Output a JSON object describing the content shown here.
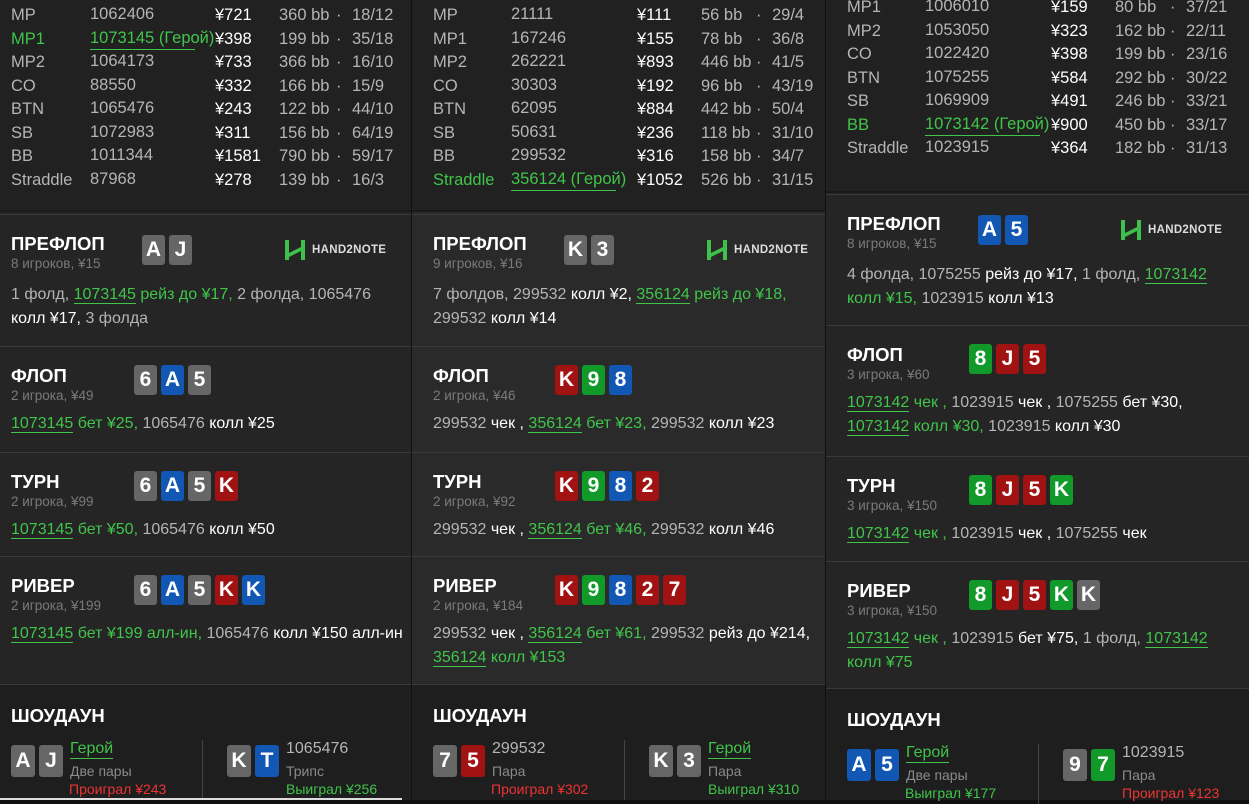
{
  "columns": [
    {
      "table": [
        {
          "pos": "MP",
          "id": "1062406",
          "amount": "¥721",
          "bb": "360 bb",
          "stats": "18/12",
          "hero": false
        },
        {
          "pos": "MP1",
          "id": "1073145 (Герой)",
          "amount": "¥398",
          "bb": "199 bb",
          "stats": "35/18",
          "hero": true
        },
        {
          "pos": "MP2",
          "id": "1064173",
          "amount": "¥733",
          "bb": "366 bb",
          "stats": "16/10",
          "hero": false
        },
        {
          "pos": "CO",
          "id": "88550",
          "amount": "¥332",
          "bb": "166 bb",
          "stats": "15/9",
          "hero": false
        },
        {
          "pos": "BTN",
          "id": "1065476",
          "amount": "¥243",
          "bb": "122 bb",
          "stats": "44/10",
          "hero": false
        },
        {
          "pos": "SB",
          "id": "1072983",
          "amount": "¥311",
          "bb": "156 bb",
          "stats": "64/19",
          "hero": false
        },
        {
          "pos": "BB",
          "id": "1011344",
          "amount": "¥1581",
          "bb": "790 bb",
          "stats": "59/17",
          "hero": false
        },
        {
          "pos": "Straddle",
          "id": "87968",
          "amount": "¥278",
          "bb": "139 bb",
          "stats": "16/3",
          "hero": false
        }
      ],
      "streets": [
        {
          "title": "ПРЕФЛОП",
          "sub": "8 игроков, ¥15",
          "cards": [
            {
              "r": "A",
              "s": "s"
            },
            {
              "r": "J",
              "s": "s"
            }
          ],
          "logo": true,
          "actions": [
            {
              "t": "1 фолд, ",
              "c": "gray"
            },
            {
              "t": "1073145",
              "c": "hu"
            },
            {
              "t": " рейз до ¥17, ",
              "c": "green"
            },
            {
              "t": "2 фолда, 1065476 ",
              "c": "gray"
            },
            {
              "t": "колл ¥17, ",
              "c": "white"
            },
            {
              "t": "3 фолда",
              "c": "gray"
            }
          ]
        },
        {
          "title": "ФЛОП",
          "sub": "2 игрока, ¥49",
          "cards": [
            {
              "r": "6",
              "s": "s"
            },
            {
              "r": "A",
              "s": "d"
            },
            {
              "r": "5",
              "s": "s"
            }
          ],
          "actions": [
            {
              "t": "1073145",
              "c": "hu"
            },
            {
              "t": " бет ¥25, ",
              "c": "green"
            },
            {
              "t": "1065476 ",
              "c": "gray"
            },
            {
              "t": "колл ¥25",
              "c": "white"
            }
          ]
        },
        {
          "title": "ТУРН",
          "sub": "2 игрока, ¥99",
          "cards": [
            {
              "r": "6",
              "s": "s"
            },
            {
              "r": "A",
              "s": "d"
            },
            {
              "r": "5",
              "s": "s"
            },
            {
              "r": "K",
              "s": "h"
            }
          ],
          "actions": [
            {
              "t": "1073145",
              "c": "hu"
            },
            {
              "t": " бет ¥50, ",
              "c": "green"
            },
            {
              "t": "1065476 ",
              "c": "gray"
            },
            {
              "t": "колл ¥50",
              "c": "white"
            }
          ]
        },
        {
          "title": "РИВЕР",
          "sub": "2 игрока, ¥199",
          "cards": [
            {
              "r": "6",
              "s": "s"
            },
            {
              "r": "A",
              "s": "d"
            },
            {
              "r": "5",
              "s": "s"
            },
            {
              "r": "K",
              "s": "h"
            },
            {
              "r": "K",
              "s": "d"
            }
          ],
          "actions": [
            {
              "t": "1073145",
              "c": "hu"
            },
            {
              "t": " бет ¥199 алл-ин, ",
              "c": "green"
            },
            {
              "t": "1065476 ",
              "c": "gray"
            },
            {
              "t": "колл ¥150 алл-ин",
              "c": "white"
            }
          ]
        }
      ],
      "showdown": {
        "title": "ШОУДАУН",
        "players": [
          {
            "cards": [
              {
                "r": "A",
                "s": "s"
              },
              {
                "r": "J",
                "s": "s"
              }
            ],
            "name": "Герой",
            "hero": true,
            "hand": "Две пары",
            "result": "Проиграл ¥243",
            "win": false
          },
          {
            "cards": [
              {
                "r": "K",
                "s": "s"
              },
              {
                "r": "T",
                "s": "d"
              }
            ],
            "name": "1065476",
            "hero": false,
            "hand": "Трипс",
            "result": "Выиграл ¥256",
            "win": true
          }
        ]
      }
    },
    {
      "table": [
        {
          "pos": "MP",
          "id": "21111",
          "amount": "¥111",
          "bb": "56 bb",
          "stats": "29/4",
          "hero": false
        },
        {
          "pos": "MP1",
          "id": "167246",
          "amount": "¥155",
          "bb": "78 bb",
          "stats": "36/8",
          "hero": false
        },
        {
          "pos": "MP2",
          "id": "262221",
          "amount": "¥893",
          "bb": "446 bb",
          "stats": "41/5",
          "hero": false
        },
        {
          "pos": "CO",
          "id": "30303",
          "amount": "¥192",
          "bb": "96 bb",
          "stats": "43/19",
          "hero": false
        },
        {
          "pos": "BTN",
          "id": "62095",
          "amount": "¥884",
          "bb": "442 bb",
          "stats": "50/4",
          "hero": false
        },
        {
          "pos": "SB",
          "id": "50631",
          "amount": "¥236",
          "bb": "118 bb",
          "stats": "31/10",
          "hero": false
        },
        {
          "pos": "BB",
          "id": "299532",
          "amount": "¥316",
          "bb": "158 bb",
          "stats": "34/7",
          "hero": false
        },
        {
          "pos": "Straddle",
          "id": "356124 (Герой)",
          "amount": "¥1052",
          "bb": "526 bb",
          "stats": "31/15",
          "hero": true
        }
      ],
      "streets": [
        {
          "title": "ПРЕФЛОП",
          "sub": "9 игроков, ¥16",
          "cards": [
            {
              "r": "K",
              "s": "s"
            },
            {
              "r": "3",
              "s": "s"
            }
          ],
          "logo": true,
          "actions": [
            {
              "t": "7 фолдов, 299532 ",
              "c": "gray"
            },
            {
              "t": "колл ¥2, ",
              "c": "white"
            },
            {
              "t": "356124",
              "c": "hu"
            },
            {
              "t": " рейз до ¥18, ",
              "c": "green"
            },
            {
              "t": "299532 ",
              "c": "gray"
            },
            {
              "t": "колл ¥14",
              "c": "white"
            }
          ]
        },
        {
          "title": "ФЛОП",
          "sub": "2 игрока, ¥46",
          "cards": [
            {
              "r": "K",
              "s": "h"
            },
            {
              "r": "9",
              "s": "c"
            },
            {
              "r": "8",
              "s": "d"
            }
          ],
          "actions": [
            {
              "t": "299532 ",
              "c": "gray"
            },
            {
              "t": "чек , ",
              "c": "white"
            },
            {
              "t": "356124",
              "c": "hu"
            },
            {
              "t": " бет ¥23, ",
              "c": "green"
            },
            {
              "t": "299532 ",
              "c": "gray"
            },
            {
              "t": "колл ¥23",
              "c": "white"
            }
          ]
        },
        {
          "title": "ТУРН",
          "sub": "2 игрока, ¥92",
          "cards": [
            {
              "r": "K",
              "s": "h"
            },
            {
              "r": "9",
              "s": "c"
            },
            {
              "r": "8",
              "s": "d"
            },
            {
              "r": "2",
              "s": "h"
            }
          ],
          "actions": [
            {
              "t": "299532 ",
              "c": "gray"
            },
            {
              "t": "чек , ",
              "c": "white"
            },
            {
              "t": "356124",
              "c": "hu"
            },
            {
              "t": " бет ¥46, ",
              "c": "green"
            },
            {
              "t": "299532 ",
              "c": "gray"
            },
            {
              "t": "колл ¥46",
              "c": "white"
            }
          ]
        },
        {
          "title": "РИВЕР",
          "sub": "2 игрока, ¥184",
          "cards": [
            {
              "r": "K",
              "s": "h"
            },
            {
              "r": "9",
              "s": "c"
            },
            {
              "r": "8",
              "s": "d"
            },
            {
              "r": "2",
              "s": "h"
            },
            {
              "r": "7",
              "s": "h"
            }
          ],
          "actions": [
            {
              "t": "299532 ",
              "c": "gray"
            },
            {
              "t": "чек , ",
              "c": "white"
            },
            {
              "t": "356124",
              "c": "hu"
            },
            {
              "t": " бет ¥61, ",
              "c": "green"
            },
            {
              "t": "299532 ",
              "c": "gray"
            },
            {
              "t": "рейз до ¥214, ",
              "c": "white"
            },
            {
              "t": "356124",
              "c": "hu"
            },
            {
              "t": " колл ¥153",
              "c": "green"
            }
          ]
        }
      ],
      "showdown": {
        "title": "ШОУДАУН",
        "players": [
          {
            "cards": [
              {
                "r": "7",
                "s": "s"
              },
              {
                "r": "5",
                "s": "h"
              }
            ],
            "name": "299532",
            "hero": false,
            "hand": "Пара",
            "result": "Проиграл ¥302",
            "win": false
          },
          {
            "cards": [
              {
                "r": "K",
                "s": "s"
              },
              {
                "r": "3",
                "s": "s"
              }
            ],
            "name": "Герой",
            "hero": true,
            "hand": "Пара",
            "result": "Выиграл ¥310",
            "win": true
          }
        ]
      }
    },
    {
      "table": [
        {
          "pos": "MP1",
          "id": "1006010",
          "amount": "¥159",
          "bb": "80 bb",
          "stats": "37/21",
          "hero": false
        },
        {
          "pos": "MP2",
          "id": "1053050",
          "amount": "¥323",
          "bb": "162 bb",
          "stats": "22/11",
          "hero": false
        },
        {
          "pos": "CO",
          "id": "1022420",
          "amount": "¥398",
          "bb": "199 bb",
          "stats": "23/16",
          "hero": false
        },
        {
          "pos": "BTN",
          "id": "1075255",
          "amount": "¥584",
          "bb": "292 bb",
          "stats": "30/22",
          "hero": false
        },
        {
          "pos": "SB",
          "id": "1069909",
          "amount": "¥491",
          "bb": "246 bb",
          "stats": "33/21",
          "hero": false
        },
        {
          "pos": "BB",
          "id": "1073142 (Герой)",
          "amount": "¥900",
          "bb": "450 bb",
          "stats": "33/17",
          "hero": true
        },
        {
          "pos": "Straddle",
          "id": "1023915",
          "amount": "¥364",
          "bb": "182 bb",
          "stats": "31/13",
          "hero": false
        }
      ],
      "streets": [
        {
          "title": "ПРЕФЛОП",
          "sub": "8 игроков, ¥15",
          "cards": [
            {
              "r": "A",
              "s": "d"
            },
            {
              "r": "5",
              "s": "d"
            }
          ],
          "logo": true,
          "actions": [
            {
              "t": "4 фолда, 1075255 ",
              "c": "gray"
            },
            {
              "t": "рейз до ¥17, ",
              "c": "white"
            },
            {
              "t": "1 фолд, ",
              "c": "gray"
            },
            {
              "t": "1073142",
              "c": "hu"
            },
            {
              "t": " колл ¥15, ",
              "c": "green"
            },
            {
              "t": "1023915 ",
              "c": "gray"
            },
            {
              "t": "колл ¥13",
              "c": "white"
            }
          ]
        },
        {
          "title": "ФЛОП",
          "sub": "3 игрока, ¥60",
          "cards": [
            {
              "r": "8",
              "s": "c"
            },
            {
              "r": "J",
              "s": "h"
            },
            {
              "r": "5",
              "s": "h"
            }
          ],
          "actions": [
            {
              "t": "1073142",
              "c": "hu"
            },
            {
              "t": " чек , ",
              "c": "green"
            },
            {
              "t": "1023915 ",
              "c": "gray"
            },
            {
              "t": "чек , ",
              "c": "white"
            },
            {
              "t": "1075255 ",
              "c": "gray"
            },
            {
              "t": "бет ¥30, ",
              "c": "white"
            },
            {
              "t": "1073142",
              "c": "hu"
            },
            {
              "t": " колл ¥30, ",
              "c": "green"
            },
            {
              "t": "1023915 ",
              "c": "gray"
            },
            {
              "t": "колл ¥30",
              "c": "white"
            }
          ]
        },
        {
          "title": "ТУРН",
          "sub": "3 игрока, ¥150",
          "cards": [
            {
              "r": "8",
              "s": "c"
            },
            {
              "r": "J",
              "s": "h"
            },
            {
              "r": "5",
              "s": "h"
            },
            {
              "r": "K",
              "s": "c"
            }
          ],
          "actions": [
            {
              "t": "1073142",
              "c": "hu"
            },
            {
              "t": " чек , ",
              "c": "green"
            },
            {
              "t": "1023915 ",
              "c": "gray"
            },
            {
              "t": "чек , ",
              "c": "white"
            },
            {
              "t": "1075255 ",
              "c": "gray"
            },
            {
              "t": "чек",
              "c": "white"
            }
          ]
        },
        {
          "title": "РИВЕР",
          "sub": "3 игрока, ¥150",
          "cards": [
            {
              "r": "8",
              "s": "c"
            },
            {
              "r": "J",
              "s": "h"
            },
            {
              "r": "5",
              "s": "h"
            },
            {
              "r": "K",
              "s": "c"
            },
            {
              "r": "K",
              "s": "s"
            }
          ],
          "actions": [
            {
              "t": "1073142",
              "c": "hu"
            },
            {
              "t": " чек , ",
              "c": "green"
            },
            {
              "t": "1023915 ",
              "c": "gray"
            },
            {
              "t": "бет ¥75, ",
              "c": "white"
            },
            {
              "t": "1 фолд, ",
              "c": "gray"
            },
            {
              "t": "1073142",
              "c": "hu"
            },
            {
              "t": " колл ¥75",
              "c": "green"
            }
          ]
        }
      ],
      "showdown": {
        "title": "ШОУДАУН",
        "players": [
          {
            "cards": [
              {
                "r": "A",
                "s": "d"
              },
              {
                "r": "5",
                "s": "d"
              }
            ],
            "name": "Герой",
            "hero": true,
            "hand": "Две пары",
            "result": "Выиграл ¥177",
            "win": true
          },
          {
            "cards": [
              {
                "r": "9",
                "s": "s"
              },
              {
                "r": "7",
                "s": "c"
              }
            ],
            "name": "1023915",
            "hero": false,
            "hand": "Пара",
            "result": "Проиграл ¥123",
            "win": false
          }
        ]
      }
    }
  ],
  "logo_text": "HAND2NOTE",
  "colors": {
    "hero_green": "#40c54a",
    "spade": "#666666",
    "heart": "#a11212",
    "diamond": "#1257b3",
    "club": "#119a2a",
    "lose": "#ee3333"
  }
}
